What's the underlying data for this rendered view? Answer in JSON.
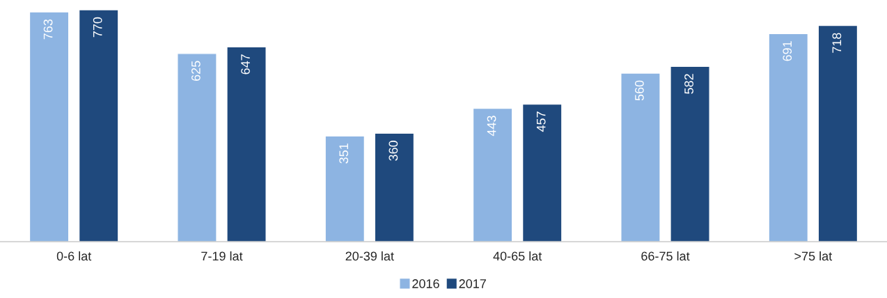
{
  "chart_data": {
    "type": "bar",
    "categories": [
      "0-6 lat",
      "7-19 lat",
      "20-39 lat",
      "40-65 lat",
      "66-75 lat",
      ">75 lat"
    ],
    "series": [
      {
        "name": "2016",
        "color": "#8db4e2",
        "values": [
          763,
          625,
          351,
          443,
          560,
          691
        ]
      },
      {
        "name": "2017",
        "color": "#1f497d",
        "values": [
          770,
          647,
          360,
          457,
          582,
          718
        ]
      }
    ],
    "data_labels": true,
    "legend": "bottom",
    "grid": false
  }
}
